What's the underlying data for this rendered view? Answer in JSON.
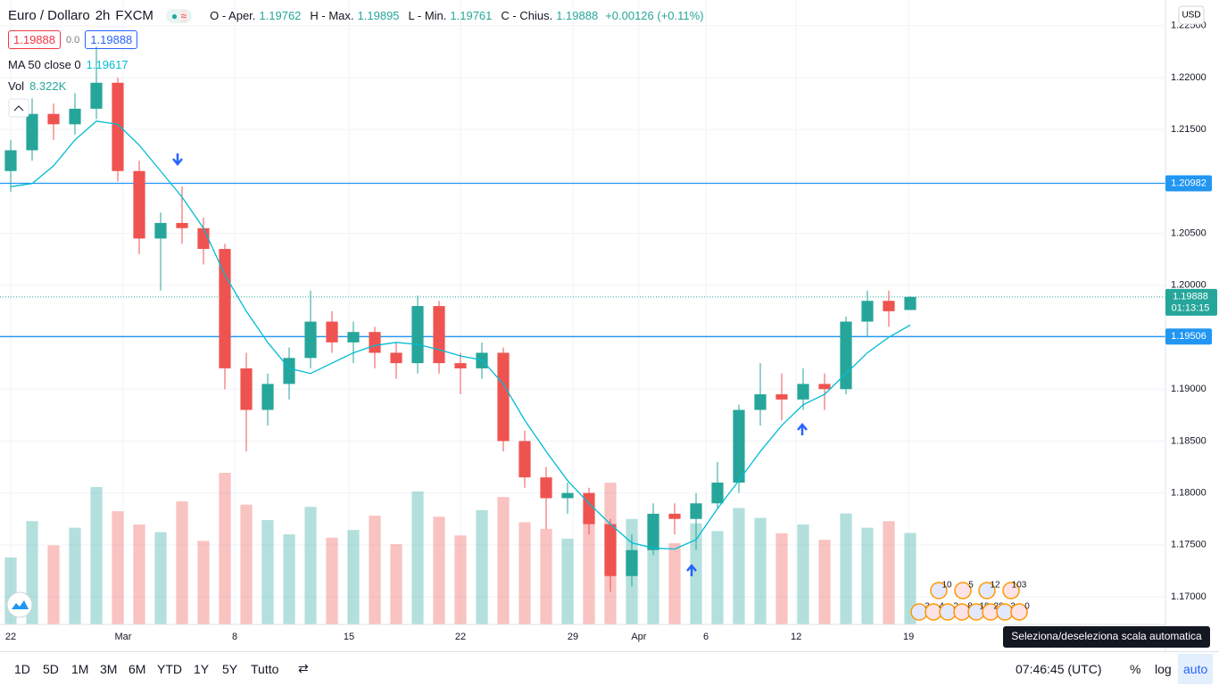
{
  "header": {
    "symbol": "Euro / Dollaro",
    "interval": "2h",
    "exchange": "FXCM",
    "ohlc": [
      {
        "label": "O - Aper.",
        "value": "1.19762"
      },
      {
        "label": "H - Max.",
        "value": "1.19895"
      },
      {
        "label": "L - Min.",
        "value": "1.19761"
      },
      {
        "label": "C - Chius.",
        "value": "1.19888"
      }
    ],
    "change": "+0.00126 (+0.11%)",
    "bid": "1.19888",
    "spread": "0.0",
    "ask": "1.19888",
    "ma_label": "MA 50 close 0",
    "ma_value": "1.19617",
    "vol_label": "Vol",
    "vol_value": "8.322K"
  },
  "currency": "USD",
  "chart_data": {
    "type": "candlestick",
    "x": [
      0,
      1,
      2,
      3,
      4,
      5,
      6,
      7,
      8,
      9,
      10,
      11,
      12,
      13,
      14,
      15,
      16,
      17,
      18,
      19,
      20,
      21,
      22,
      23,
      24,
      25,
      26,
      27,
      28,
      29,
      30,
      31,
      32,
      33,
      34,
      35,
      36,
      37,
      38,
      39,
      40,
      41,
      42
    ],
    "open": [
      1.211,
      1.213,
      1.2165,
      1.2155,
      1.217,
      1.2195,
      1.211,
      1.2045,
      1.206,
      1.2055,
      1.2035,
      1.192,
      1.188,
      1.1905,
      1.193,
      1.1965,
      1.1945,
      1.1955,
      1.1935,
      1.1925,
      1.198,
      1.1925,
      1.192,
      1.1935,
      1.185,
      1.1815,
      1.1795,
      1.18,
      1.177,
      1.172,
      1.1745,
      1.178,
      1.1775,
      1.179,
      1.181,
      1.188,
      1.1895,
      1.189,
      1.1905,
      1.19,
      1.1965,
      1.1985,
      1.19762
    ],
    "high": [
      1.214,
      1.218,
      1.2175,
      1.2185,
      1.223,
      1.22,
      1.212,
      1.207,
      1.2095,
      1.2065,
      1.204,
      1.1935,
      1.1915,
      1.194,
      1.1995,
      1.1975,
      1.1965,
      1.196,
      1.1945,
      1.199,
      1.1985,
      1.1935,
      1.1945,
      1.194,
      1.186,
      1.1825,
      1.181,
      1.1805,
      1.1775,
      1.176,
      1.179,
      1.179,
      1.18,
      1.183,
      1.1885,
      1.1925,
      1.1915,
      1.192,
      1.1915,
      1.197,
      1.1995,
      1.1995,
      1.19895
    ],
    "low": [
      1.209,
      1.212,
      1.214,
      1.2145,
      1.216,
      1.21,
      1.203,
      1.1995,
      1.204,
      1.202,
      1.19,
      1.184,
      1.1865,
      1.189,
      1.192,
      1.1935,
      1.1925,
      1.192,
      1.191,
      1.1915,
      1.1915,
      1.1895,
      1.191,
      1.184,
      1.1805,
      1.1765,
      1.178,
      1.176,
      1.1705,
      1.171,
      1.174,
      1.176,
      1.1745,
      1.1785,
      1.18,
      1.1865,
      1.187,
      1.188,
      1.188,
      1.1895,
      1.195,
      1.196,
      1.19761
    ],
    "close": [
      1.213,
      1.2165,
      1.2155,
      1.217,
      1.2195,
      1.211,
      1.2045,
      1.206,
      1.2055,
      1.2035,
      1.192,
      1.188,
      1.1905,
      1.193,
      1.1965,
      1.1945,
      1.1955,
      1.1935,
      1.1925,
      1.198,
      1.1925,
      1.192,
      1.1935,
      1.185,
      1.1815,
      1.1795,
      1.18,
      1.177,
      1.172,
      1.1745,
      1.178,
      1.1775,
      1.179,
      1.181,
      1.188,
      1.1895,
      1.189,
      1.1905,
      1.19,
      1.1965,
      1.1985,
      1.1975,
      1.19888
    ],
    "volume": [
      6.1,
      9.4,
      7.2,
      8.8,
      12.5,
      10.3,
      9.1,
      8.4,
      11.2,
      7.6,
      13.8,
      10.9,
      9.5,
      8.2,
      10.7,
      7.9,
      8.6,
      9.9,
      7.3,
      12.1,
      9.8,
      8.1,
      10.4,
      11.6,
      9.3,
      8.7,
      7.8,
      10.2,
      12.9,
      9.6,
      8.9,
      7.4,
      9.2,
      8.5,
      10.6,
      9.7,
      8.3,
      9.1,
      7.7,
      10.1,
      8.8,
      9.4,
      8.322
    ],
    "ma": {
      "name": "MA 50 close 0",
      "color": "#00bcd4",
      "values": [
        1.2095,
        1.2098,
        1.2115,
        1.214,
        1.2158,
        1.2155,
        1.2135,
        1.211,
        1.2085,
        1.2055,
        1.201,
        1.1975,
        1.1945,
        1.192,
        1.1915,
        1.1925,
        1.1935,
        1.1942,
        1.1945,
        1.1943,
        1.1938,
        1.1932,
        1.1928,
        1.1905,
        1.187,
        1.184,
        1.1812,
        1.179,
        1.177,
        1.1752,
        1.1747,
        1.1746,
        1.1755,
        1.1785,
        1.1812,
        1.184,
        1.1865,
        1.1885,
        1.1895,
        1.1915,
        1.1935,
        1.195,
        1.19617
      ]
    },
    "up_color": "#26a69a",
    "down_color": "#ef5350",
    "xlim": [
      -0.5,
      53.875
    ],
    "ylim": [
      1.16734,
      1.22747
    ],
    "xticks": [
      {
        "value": 0.0,
        "label": "22"
      },
      {
        "value": 5.25,
        "label": "Mar"
      },
      {
        "value": 10.46,
        "label": "8"
      },
      {
        "value": 15.79,
        "label": "15"
      },
      {
        "value": 21.0,
        "label": "22"
      },
      {
        "value": 26.25,
        "label": "29"
      },
      {
        "value": 29.33,
        "label": "Apr"
      },
      {
        "value": 32.46,
        "label": "6"
      },
      {
        "value": 36.67,
        "label": "12"
      },
      {
        "value": 41.92,
        "label": "19"
      }
    ],
    "yticks": [
      {
        "value": 1.17,
        "label": "1.17000"
      },
      {
        "value": 1.175,
        "label": "1.17500"
      },
      {
        "value": 1.18,
        "label": "1.18000"
      },
      {
        "value": 1.185,
        "label": "1.18500"
      },
      {
        "value": 1.19,
        "label": "1.19000"
      },
      {
        "value": 1.195,
        "label": "1.19500"
      },
      {
        "value": 1.2,
        "label": "1.20000"
      },
      {
        "value": 1.205,
        "label": "1.20500"
      },
      {
        "value": 1.21,
        "label": "1.21000"
      },
      {
        "value": 1.215,
        "label": "1.21500"
      },
      {
        "value": 1.22,
        "label": "1.22000"
      },
      {
        "value": 1.225,
        "label": "1.22500"
      }
    ],
    "grid": true,
    "price_lines": [
      {
        "value": 1.20982,
        "label": "1.20982",
        "color": "#2196f3",
        "style": "solid"
      },
      {
        "value": 1.19506,
        "label": "1.19506",
        "color": "#2196f3",
        "style": "solid"
      }
    ],
    "last_price": {
      "value": 1.19888,
      "label": "1.19888",
      "countdown": "01:13:15",
      "color": "#26a69a"
    }
  },
  "events": [
    "10",
    "5",
    "12",
    "103",
    "3",
    "4",
    "2",
    "8",
    "10",
    "28",
    "3",
    "0"
  ],
  "tooltip": "Seleziona/deseleziona scala automatica",
  "toolbar": {
    "ranges": [
      "1D",
      "5D",
      "1M",
      "3M",
      "6M",
      "YTD",
      "1Y",
      "5Y",
      "Tutto"
    ],
    "clock": "07:46:45 (UTC)",
    "percent": "%",
    "log": "log",
    "auto": "auto"
  }
}
